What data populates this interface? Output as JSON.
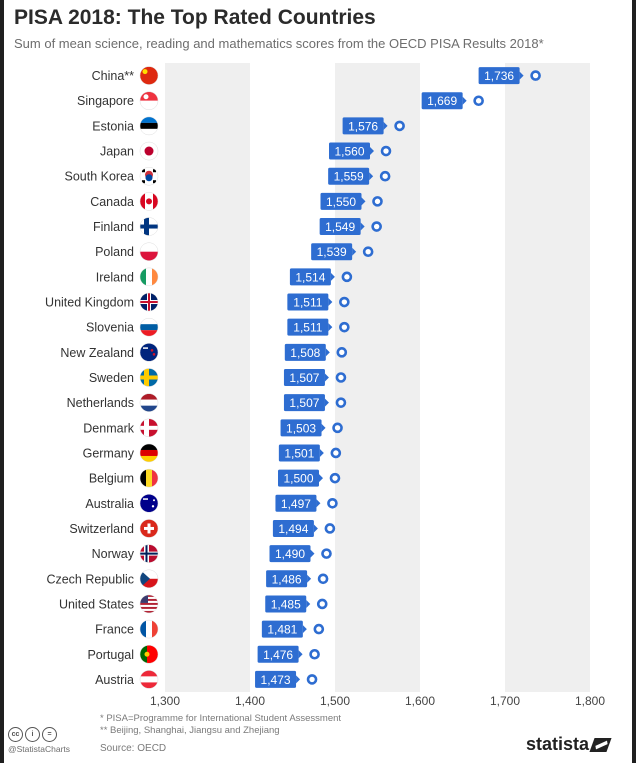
{
  "header": {
    "title": "PISA 2018: The Top Rated Countries",
    "subtitle": "Sum of mean science, reading and mathematics scores from the OECD PISA Results 2018*"
  },
  "footer": {
    "note1": "*    PISA=Programme for International Student Assessment",
    "note2": "** Beijing, Shanghai, Jiangsu and Zhejiang",
    "source": "Source: OECD",
    "handle": "@StatistaCharts",
    "brand": "statista",
    "license_icons": [
      "cc-icon",
      "by-icon",
      "nd-icon"
    ]
  },
  "colors": {
    "bar": "#2e6dd1",
    "marker_ring": "#2e6dd1",
    "band_dark": "#efefef",
    "band_light": "#ffffff",
    "text": "#333333"
  },
  "chart_data": {
    "type": "scatter",
    "title": "PISA 2018: The Top Rated Countries",
    "subtitle": "Sum of mean science, reading and mathematics scores from the OECD PISA Results 2018*",
    "xlim": [
      1300,
      1800
    ],
    "x_ticks": [
      1300,
      1400,
      1500,
      1600,
      1700,
      1800
    ],
    "x_tick_labels": [
      "1,300",
      "1,400",
      "1,500",
      "1,600",
      "1,700",
      "1,800"
    ],
    "grid": "alternating vertical bands",
    "legend": "none",
    "categories": [
      "China**",
      "Singapore",
      "Estonia",
      "Japan",
      "South Korea",
      "Canada",
      "Finland",
      "Poland",
      "Ireland",
      "United Kingdom",
      "Slovenia",
      "New Zealand",
      "Sweden",
      "Netherlands",
      "Denmark",
      "Germany",
      "Belgium",
      "Australia",
      "Switzerland",
      "Norway",
      "Czech Republic",
      "United States",
      "France",
      "Portugal",
      "Austria"
    ],
    "values": [
      1736,
      1669,
      1576,
      1560,
      1559,
      1550,
      1549,
      1539,
      1514,
      1511,
      1511,
      1508,
      1507,
      1507,
      1503,
      1501,
      1500,
      1497,
      1494,
      1490,
      1486,
      1485,
      1481,
      1476,
      1473
    ],
    "value_labels": [
      "1,736",
      "1,669",
      "1,576",
      "1,560",
      "1,559",
      "1,550",
      "1,549",
      "1,539",
      "1,514",
      "1,511",
      "1,511",
      "1,508",
      "1,507",
      "1,507",
      "1,503",
      "1,501",
      "1,500",
      "1,497",
      "1,494",
      "1,490",
      "1,486",
      "1,485",
      "1,481",
      "1,476",
      "1,473"
    ],
    "flags": [
      "china-flag-icon",
      "singapore-flag-icon",
      "estonia-flag-icon",
      "japan-flag-icon",
      "south-korea-flag-icon",
      "canada-flag-icon",
      "finland-flag-icon",
      "poland-flag-icon",
      "ireland-flag-icon",
      "united-kingdom-flag-icon",
      "slovenia-flag-icon",
      "new-zealand-flag-icon",
      "sweden-flag-icon",
      "netherlands-flag-icon",
      "denmark-flag-icon",
      "germany-flag-icon",
      "belgium-flag-icon",
      "australia-flag-icon",
      "switzerland-flag-icon",
      "norway-flag-icon",
      "czech-republic-flag-icon",
      "united-states-flag-icon",
      "france-flag-icon",
      "portugal-flag-icon",
      "austria-flag-icon"
    ]
  }
}
